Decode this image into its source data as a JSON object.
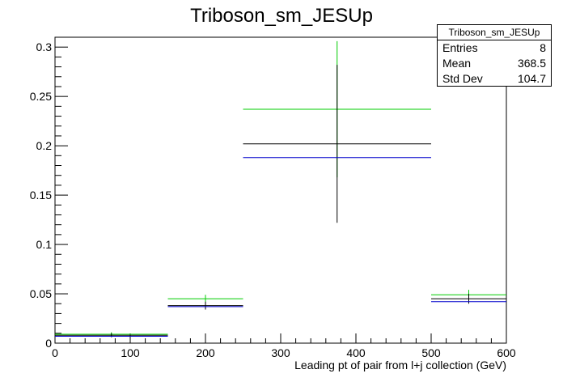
{
  "chart_data": {
    "type": "histogram",
    "title": "Triboson_sm_JESUp",
    "xlabel": "Leading pt of pair from l+j collection (GeV)",
    "ylabel": "",
    "xlim": [
      0,
      600
    ],
    "ylim": [
      0,
      0.31
    ],
    "x_ticks": [
      0,
      100,
      200,
      300,
      400,
      500,
      600
    ],
    "y_ticks": [
      0,
      0.05,
      0.1,
      0.15,
      0.2,
      0.25,
      0.3
    ],
    "x_tick_labels": [
      "0",
      "100",
      "200",
      "300",
      "400",
      "500",
      "600"
    ],
    "y_tick_labels": [
      "0",
      "0.05",
      "0.1",
      "0.15",
      "0.2",
      "0.25",
      "0.3"
    ],
    "bins": [
      [
        0,
        150
      ],
      [
        150,
        250
      ],
      [
        250,
        500
      ],
      [
        500,
        600
      ]
    ],
    "bin_centers": [
      75,
      200,
      375,
      550
    ],
    "series": [
      {
        "color": "#00cc00",
        "values": [
          0.009,
          0.045,
          0.237,
          0.049
        ],
        "errors": [
          0.002,
          0.004,
          0.069,
          0.005
        ]
      },
      {
        "color": "#000000",
        "values": [
          0.008,
          0.038,
          0.202,
          0.045
        ],
        "errors": [
          0.002,
          0.004,
          0.08,
          0.005
        ]
      },
      {
        "color": "#0000cc",
        "values": [
          0.007,
          0.037,
          0.188,
          0.042
        ],
        "errors": [
          0,
          0,
          0,
          0
        ]
      }
    ],
    "grid": false
  },
  "stats": {
    "title": "Triboson_sm_JESUp",
    "rows": [
      {
        "label": "Entries",
        "value": "8"
      },
      {
        "label": "Mean",
        "value": "368.5"
      },
      {
        "label": "Std Dev",
        "value": "104.7"
      }
    ]
  }
}
